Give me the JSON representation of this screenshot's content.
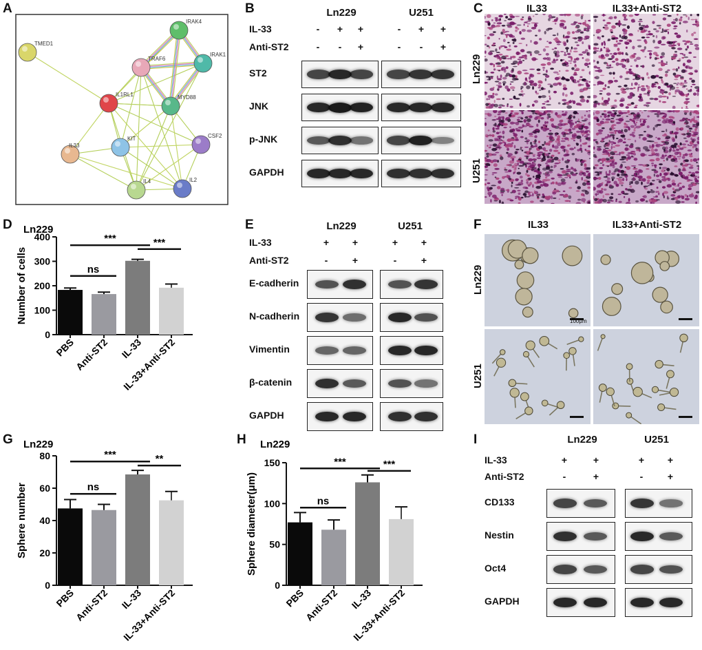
{
  "panels": {
    "a": "A",
    "b": "B",
    "c": "C",
    "d": "D",
    "e": "E",
    "f": "F",
    "g": "G",
    "h": "H",
    "i": "I"
  },
  "network": {
    "nodes": [
      {
        "id": "TMED1",
        "color": "#d9d66a"
      },
      {
        "id": "IRAK4",
        "color": "#5fbe6a"
      },
      {
        "id": "IRAK1",
        "color": "#4fb9a8"
      },
      {
        "id": "TRAF6",
        "color": "#e8a8b8"
      },
      {
        "id": "IL1RL1",
        "color": "#e0454a"
      },
      {
        "id": "MYD88",
        "color": "#58b88a"
      },
      {
        "id": "KIT",
        "color": "#8ec3e6"
      },
      {
        "id": "CSF2",
        "color": "#9b7cc8"
      },
      {
        "id": "IL33",
        "color": "#e8b890"
      },
      {
        "id": "IL4",
        "color": "#b8d890"
      },
      {
        "id": "IL2",
        "color": "#6a7cc8"
      }
    ]
  },
  "labels": {
    "ln229": "Ln229",
    "u251": "U251",
    "il33_row": "IL-33",
    "anti_row": "Anti-ST2",
    "plus": "+",
    "minus": "-",
    "img_il33": "IL33",
    "img_combo": "IL33+Anti-ST2",
    "scale": "100μm"
  },
  "blotB": {
    "rows": [
      "ST2",
      "JNK",
      "p-JNK",
      "GAPDH"
    ],
    "il33": [
      "-",
      "+",
      "+",
      "-",
      "+",
      "+"
    ],
    "anti": [
      "-",
      "-",
      "+",
      "-",
      "-",
      "+"
    ]
  },
  "blotE": {
    "rows": [
      "E-cadherin",
      "N-cadherin",
      "Vimentin",
      "β-catenin",
      "GAPDH"
    ],
    "il33": [
      "+",
      "+",
      "+",
      "+"
    ],
    "anti": [
      "-",
      "+",
      "-",
      "+"
    ]
  },
  "blotI": {
    "rows": [
      "CD133",
      "Nestin",
      "Oct4",
      "GAPDH"
    ],
    "il33": [
      "+",
      "+",
      "+",
      "+"
    ],
    "anti": [
      "-",
      "+",
      "-",
      "+"
    ]
  },
  "sig": {
    "ns": "ns",
    "three": "***",
    "two": "**"
  },
  "chart_data": [
    {
      "type": "bar",
      "title": "Ln229",
      "ylabel": "Number of cells",
      "categories": [
        "PBS",
        "Anti-ST2",
        "IL-33",
        "IL-33+Anti-ST2"
      ],
      "values": [
        183,
        166,
        302,
        192
      ],
      "errors": [
        8,
        8,
        6,
        15
      ],
      "ylim": [
        0,
        400
      ],
      "ticks": [
        0,
        100,
        200,
        300,
        400
      ],
      "colors": [
        "#0a0a0a",
        "#9a9aa0",
        "#7c7c7c",
        "#d2d2d2"
      ]
    },
    {
      "type": "bar",
      "title": "Ln229",
      "ylabel": "Sphere number",
      "categories": [
        "PBS",
        "Anti-ST2",
        "IL-33",
        "IL-33+Anti-ST2"
      ],
      "values": [
        47.5,
        46.5,
        68.5,
        52.5
      ],
      "errors": [
        5.5,
        3.5,
        2.5,
        5.5
      ],
      "ylim": [
        0,
        80
      ],
      "ticks": [
        0,
        20,
        40,
        60,
        80
      ],
      "colors": [
        "#0a0a0a",
        "#9a9aa0",
        "#7c7c7c",
        "#d2d2d2"
      ]
    },
    {
      "type": "bar",
      "title": "Ln229",
      "ylabel": "Sphere diameter(μm)",
      "categories": [
        "PBS",
        "Anti-ST2",
        "IL-33",
        "IL-33+Anti-ST2"
      ],
      "values": [
        77,
        68,
        126,
        81
      ],
      "errors": [
        12,
        12,
        9,
        15
      ],
      "ylim": [
        0,
        150
      ],
      "ticks": [
        0,
        50,
        100,
        150
      ],
      "colors": [
        "#0a0a0a",
        "#9a9aa0",
        "#7c7c7c",
        "#d2d2d2"
      ]
    }
  ]
}
